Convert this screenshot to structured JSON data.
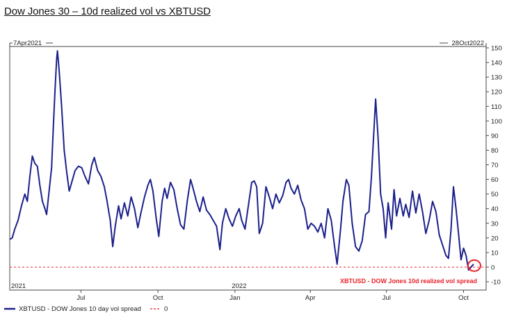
{
  "header": {
    "title": "Dow Jones 30 – 10d realized vol vs XBTUSD"
  },
  "range": {
    "start": "7Apr2021",
    "end": "28Oct2022"
  },
  "colors": {
    "series": "#1b1f8a",
    "zero": "#e8222a",
    "annotation": "#e8222a"
  },
  "legend": {
    "series_label": "XBTUSD - DOW Jones 10 day vol spread",
    "zero_label": "0"
  },
  "annotation": {
    "text": "XBTUSD - DOW Jones 10d realized vol spread"
  },
  "chart_data": {
    "type": "line",
    "title": "Dow Jones 30 – 10d realized vol vs XBTUSD",
    "xlabel": "",
    "ylabel": "",
    "ylim": [
      -10,
      150
    ],
    "yticks": [
      150,
      140,
      130,
      120,
      110,
      100,
      90,
      80,
      70,
      60,
      50,
      40,
      30,
      20,
      10,
      0,
      -10
    ],
    "xlim": [
      "2021-04-07",
      "2022-10-28"
    ],
    "x_ticks": [
      {
        "date": "2021-04-07",
        "label": "2021"
      },
      {
        "date": "2021-07-01",
        "label": "Jul"
      },
      {
        "date": "2021-10-01",
        "label": "Oct"
      },
      {
        "date": "2022-01-01",
        "label": "Jan"
      },
      {
        "date": "2022-01-06",
        "label": "2022"
      },
      {
        "date": "2022-04-01",
        "label": "Apr"
      },
      {
        "date": "2022-07-01",
        "label": "Jul"
      },
      {
        "date": "2022-10-01",
        "label": "Oct"
      }
    ],
    "reference_line": {
      "y": 0,
      "style": "dashed"
    },
    "series": [
      {
        "name": "XBTUSD - DOW Jones 10 day vol spread",
        "points": [
          [
            "2021-04-07",
            19
          ],
          [
            "2021-04-10",
            20
          ],
          [
            "2021-04-13",
            26
          ],
          [
            "2021-04-17",
            32
          ],
          [
            "2021-04-21",
            42
          ],
          [
            "2021-04-25",
            50
          ],
          [
            "2021-04-28",
            45
          ],
          [
            "2021-05-01",
            62
          ],
          [
            "2021-05-04",
            76
          ],
          [
            "2021-05-07",
            71
          ],
          [
            "2021-05-10",
            69
          ],
          [
            "2021-05-13",
            56
          ],
          [
            "2021-05-16",
            45
          ],
          [
            "2021-05-19",
            40
          ],
          [
            "2021-05-21",
            36
          ],
          [
            "2021-05-24",
            52
          ],
          [
            "2021-05-27",
            68
          ],
          [
            "2021-05-29",
            95
          ],
          [
            "2021-05-31",
            120
          ],
          [
            "2021-06-02",
            142
          ],
          [
            "2021-06-03",
            148
          ],
          [
            "2021-06-05",
            135
          ],
          [
            "2021-06-08",
            110
          ],
          [
            "2021-06-11",
            80
          ],
          [
            "2021-06-14",
            65
          ],
          [
            "2021-06-17",
            52
          ],
          [
            "2021-06-20",
            58
          ],
          [
            "2021-06-24",
            66
          ],
          [
            "2021-06-28",
            69
          ],
          [
            "2021-07-02",
            68
          ],
          [
            "2021-07-06",
            62
          ],
          [
            "2021-07-10",
            57
          ],
          [
            "2021-07-14",
            70
          ],
          [
            "2021-07-17",
            75
          ],
          [
            "2021-07-21",
            66
          ],
          [
            "2021-07-25",
            62
          ],
          [
            "2021-07-29",
            55
          ],
          [
            "2021-08-01",
            46
          ],
          [
            "2021-08-05",
            32
          ],
          [
            "2021-08-08",
            14
          ],
          [
            "2021-08-11",
            28
          ],
          [
            "2021-08-15",
            42
          ],
          [
            "2021-08-18",
            33
          ],
          [
            "2021-08-22",
            44
          ],
          [
            "2021-08-26",
            35
          ],
          [
            "2021-08-30",
            48
          ],
          [
            "2021-09-03",
            40
          ],
          [
            "2021-09-07",
            27
          ],
          [
            "2021-09-11",
            38
          ],
          [
            "2021-09-15",
            48
          ],
          [
            "2021-09-19",
            56
          ],
          [
            "2021-09-22",
            60
          ],
          [
            "2021-09-25",
            52
          ],
          [
            "2021-09-29",
            33
          ],
          [
            "2021-10-02",
            21
          ],
          [
            "2021-10-06",
            45
          ],
          [
            "2021-10-09",
            54
          ],
          [
            "2021-10-12",
            47
          ],
          [
            "2021-10-16",
            58
          ],
          [
            "2021-10-20",
            53
          ],
          [
            "2021-10-24",
            40
          ],
          [
            "2021-10-28",
            29
          ],
          [
            "2021-11-01",
            26
          ],
          [
            "2021-11-05",
            45
          ],
          [
            "2021-11-09",
            60
          ],
          [
            "2021-11-12",
            54
          ],
          [
            "2021-11-16",
            45
          ],
          [
            "2021-11-20",
            38
          ],
          [
            "2021-11-24",
            48
          ],
          [
            "2021-11-28",
            39
          ],
          [
            "2021-12-02",
            36
          ],
          [
            "2021-12-06",
            32
          ],
          [
            "2021-12-10",
            28
          ],
          [
            "2021-12-14",
            12
          ],
          [
            "2021-12-17",
            30
          ],
          [
            "2021-12-21",
            40
          ],
          [
            "2021-12-25",
            33
          ],
          [
            "2021-12-29",
            28
          ],
          [
            "2022-01-02",
            35
          ],
          [
            "2022-01-06",
            40
          ],
          [
            "2022-01-09",
            32
          ],
          [
            "2022-01-13",
            26
          ],
          [
            "2022-01-17",
            42
          ],
          [
            "2022-01-21",
            58
          ],
          [
            "2022-01-24",
            59
          ],
          [
            "2022-01-27",
            55
          ],
          [
            "2022-01-30",
            23
          ],
          [
            "2022-02-03",
            30
          ],
          [
            "2022-02-07",
            55
          ],
          [
            "2022-02-11",
            48
          ],
          [
            "2022-02-15",
            40
          ],
          [
            "2022-02-19",
            50
          ],
          [
            "2022-02-23",
            44
          ],
          [
            "2022-02-27",
            49
          ],
          [
            "2022-03-03",
            58
          ],
          [
            "2022-03-06",
            60
          ],
          [
            "2022-03-09",
            54
          ],
          [
            "2022-03-13",
            50
          ],
          [
            "2022-03-17",
            56
          ],
          [
            "2022-03-21",
            46
          ],
          [
            "2022-03-25",
            40
          ],
          [
            "2022-03-29",
            26
          ],
          [
            "2022-04-02",
            30
          ],
          [
            "2022-04-06",
            28
          ],
          [
            "2022-04-10",
            24
          ],
          [
            "2022-04-14",
            30
          ],
          [
            "2022-04-18",
            20
          ],
          [
            "2022-04-22",
            40
          ],
          [
            "2022-04-26",
            32
          ],
          [
            "2022-04-30",
            14
          ],
          [
            "2022-05-03",
            2
          ],
          [
            "2022-05-07",
            25
          ],
          [
            "2022-05-10",
            45
          ],
          [
            "2022-05-14",
            60
          ],
          [
            "2022-05-17",
            56
          ],
          [
            "2022-05-21",
            30
          ],
          [
            "2022-05-25",
            14
          ],
          [
            "2022-05-29",
            11
          ],
          [
            "2022-06-02",
            18
          ],
          [
            "2022-06-06",
            36
          ],
          [
            "2022-06-10",
            38
          ],
          [
            "2022-06-13",
            62
          ],
          [
            "2022-06-16",
            94
          ],
          [
            "2022-06-18",
            115
          ],
          [
            "2022-06-21",
            88
          ],
          [
            "2022-06-24",
            50
          ],
          [
            "2022-06-27",
            40
          ],
          [
            "2022-06-30",
            20
          ],
          [
            "2022-07-03",
            44
          ],
          [
            "2022-07-07",
            26
          ],
          [
            "2022-07-10",
            53
          ],
          [
            "2022-07-13",
            35
          ],
          [
            "2022-07-17",
            47
          ],
          [
            "2022-07-21",
            35
          ],
          [
            "2022-07-24",
            43
          ],
          [
            "2022-07-28",
            34
          ],
          [
            "2022-08-01",
            52
          ],
          [
            "2022-08-05",
            37
          ],
          [
            "2022-08-09",
            50
          ],
          [
            "2022-08-13",
            38
          ],
          [
            "2022-08-17",
            23
          ],
          [
            "2022-08-21",
            32
          ],
          [
            "2022-08-25",
            45
          ],
          [
            "2022-08-29",
            38
          ],
          [
            "2022-09-02",
            22
          ],
          [
            "2022-09-06",
            15
          ],
          [
            "2022-09-10",
            8
          ],
          [
            "2022-09-13",
            6
          ],
          [
            "2022-09-16",
            25
          ],
          [
            "2022-09-19",
            55
          ],
          [
            "2022-09-22",
            40
          ],
          [
            "2022-09-25",
            23
          ],
          [
            "2022-09-28",
            5
          ],
          [
            "2022-10-01",
            13
          ],
          [
            "2022-10-04",
            8
          ],
          [
            "2022-10-07",
            -2
          ],
          [
            "2022-10-10",
            0
          ],
          [
            "2022-10-13",
            2
          ]
        ]
      }
    ]
  }
}
